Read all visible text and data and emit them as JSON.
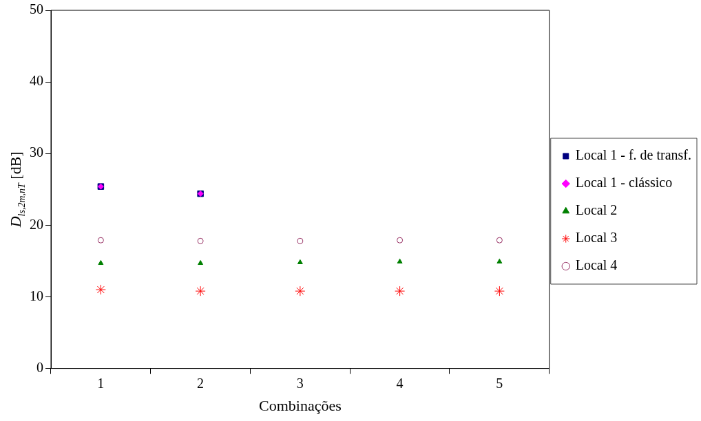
{
  "chart_data": {
    "type": "scatter",
    "xlabel": "Combinações",
    "ylabel": "D$_{ls,2m,nT}$ [dB]",
    "categories": [
      "1",
      "2",
      "3",
      "4",
      "5"
    ],
    "ylim": [
      0,
      50
    ],
    "yticks": [
      0,
      10,
      20,
      30,
      40,
      50
    ],
    "grid": false,
    "legend": "right",
    "series": [
      {
        "name": "Local 1 - f. de transf.",
        "color": "#000080",
        "marker": "square",
        "values": [
          25.4,
          24.4,
          null,
          null,
          null
        ]
      },
      {
        "name": "Local 1 - clássico",
        "color": "#ff00ff",
        "marker": "diamond",
        "values": [
          25.4,
          24.4,
          null,
          null,
          null
        ]
      },
      {
        "name": "Local 2",
        "color": "#008000",
        "marker": "triangle",
        "values": [
          14.7,
          14.7,
          14.8,
          14.9,
          14.9
        ]
      },
      {
        "name": "Local 3",
        "color": "#ff0000",
        "marker": "cross",
        "values": [
          11.0,
          10.8,
          10.8,
          10.8,
          10.8
        ]
      },
      {
        "name": "Local 4",
        "color": "#993366",
        "marker": "circle",
        "values": [
          17.9,
          17.8,
          17.8,
          17.9,
          17.9
        ]
      }
    ]
  }
}
